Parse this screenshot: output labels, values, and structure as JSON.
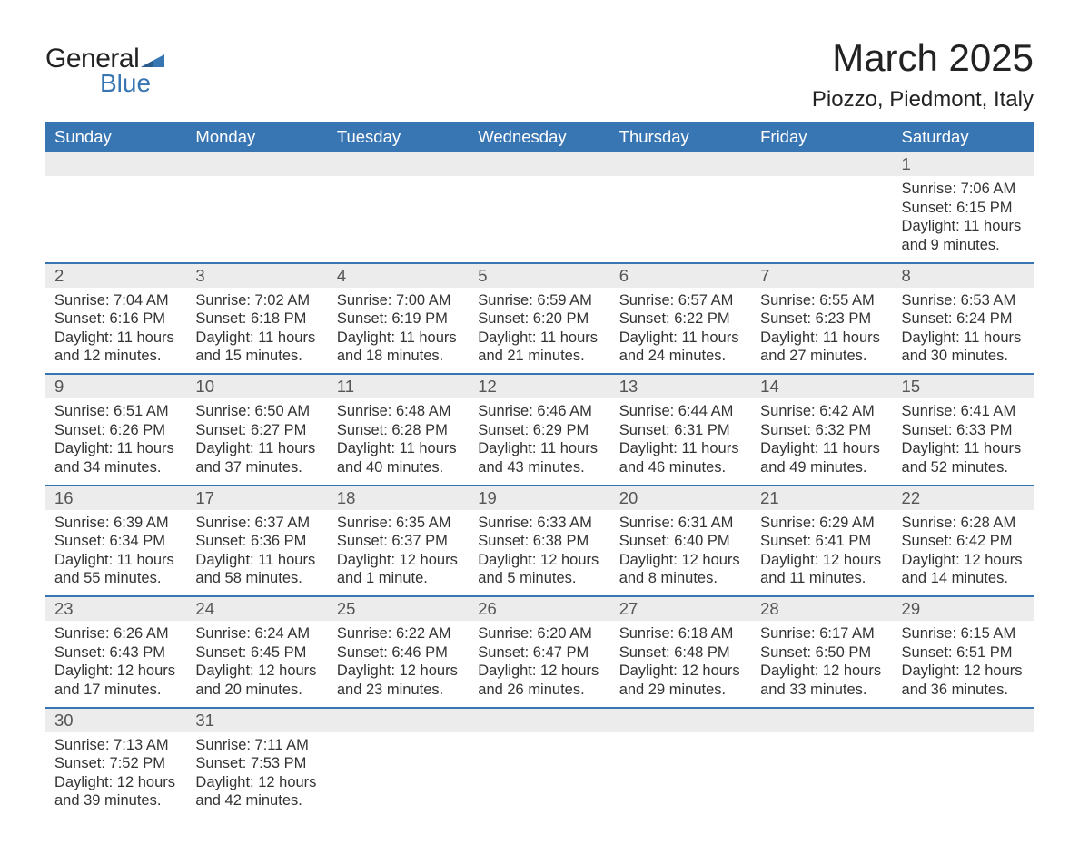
{
  "logo": {
    "text_general": "General",
    "text_blue": "Blue",
    "accent_color": "#3875b3"
  },
  "title": "March 2025",
  "location": "Piozzo, Piedmont, Italy",
  "colors": {
    "header_bg": "#3875b3",
    "header_text": "#ffffff",
    "daynum_bg": "#ececec",
    "row_border": "#3875b3",
    "body_text": "#333333",
    "daynum_text": "#555555",
    "page_bg": "#ffffff"
  },
  "fonts": {
    "title_size_pt": 32,
    "location_size_pt": 18,
    "header_size_pt": 14,
    "daynum_size_pt": 14,
    "cell_size_pt": 12.5
  },
  "layout": {
    "columns": 7,
    "rows": 6
  },
  "day_headers": [
    "Sunday",
    "Monday",
    "Tuesday",
    "Wednesday",
    "Thursday",
    "Friday",
    "Saturday"
  ],
  "weeks": [
    [
      {
        "day": "",
        "sunrise": "",
        "sunset": "",
        "daylight": ""
      },
      {
        "day": "",
        "sunrise": "",
        "sunset": "",
        "daylight": ""
      },
      {
        "day": "",
        "sunrise": "",
        "sunset": "",
        "daylight": ""
      },
      {
        "day": "",
        "sunrise": "",
        "sunset": "",
        "daylight": ""
      },
      {
        "day": "",
        "sunrise": "",
        "sunset": "",
        "daylight": ""
      },
      {
        "day": "",
        "sunrise": "",
        "sunset": "",
        "daylight": ""
      },
      {
        "day": "1",
        "sunrise": "Sunrise: 7:06 AM",
        "sunset": "Sunset: 6:15 PM",
        "daylight": "Daylight: 11 hours and 9 minutes."
      }
    ],
    [
      {
        "day": "2",
        "sunrise": "Sunrise: 7:04 AM",
        "sunset": "Sunset: 6:16 PM",
        "daylight": "Daylight: 11 hours and 12 minutes."
      },
      {
        "day": "3",
        "sunrise": "Sunrise: 7:02 AM",
        "sunset": "Sunset: 6:18 PM",
        "daylight": "Daylight: 11 hours and 15 minutes."
      },
      {
        "day": "4",
        "sunrise": "Sunrise: 7:00 AM",
        "sunset": "Sunset: 6:19 PM",
        "daylight": "Daylight: 11 hours and 18 minutes."
      },
      {
        "day": "5",
        "sunrise": "Sunrise: 6:59 AM",
        "sunset": "Sunset: 6:20 PM",
        "daylight": "Daylight: 11 hours and 21 minutes."
      },
      {
        "day": "6",
        "sunrise": "Sunrise: 6:57 AM",
        "sunset": "Sunset: 6:22 PM",
        "daylight": "Daylight: 11 hours and 24 minutes."
      },
      {
        "day": "7",
        "sunrise": "Sunrise: 6:55 AM",
        "sunset": "Sunset: 6:23 PM",
        "daylight": "Daylight: 11 hours and 27 minutes."
      },
      {
        "day": "8",
        "sunrise": "Sunrise: 6:53 AM",
        "sunset": "Sunset: 6:24 PM",
        "daylight": "Daylight: 11 hours and 30 minutes."
      }
    ],
    [
      {
        "day": "9",
        "sunrise": "Sunrise: 6:51 AM",
        "sunset": "Sunset: 6:26 PM",
        "daylight": "Daylight: 11 hours and 34 minutes."
      },
      {
        "day": "10",
        "sunrise": "Sunrise: 6:50 AM",
        "sunset": "Sunset: 6:27 PM",
        "daylight": "Daylight: 11 hours and 37 minutes."
      },
      {
        "day": "11",
        "sunrise": "Sunrise: 6:48 AM",
        "sunset": "Sunset: 6:28 PM",
        "daylight": "Daylight: 11 hours and 40 minutes."
      },
      {
        "day": "12",
        "sunrise": "Sunrise: 6:46 AM",
        "sunset": "Sunset: 6:29 PM",
        "daylight": "Daylight: 11 hours and 43 minutes."
      },
      {
        "day": "13",
        "sunrise": "Sunrise: 6:44 AM",
        "sunset": "Sunset: 6:31 PM",
        "daylight": "Daylight: 11 hours and 46 minutes."
      },
      {
        "day": "14",
        "sunrise": "Sunrise: 6:42 AM",
        "sunset": "Sunset: 6:32 PM",
        "daylight": "Daylight: 11 hours and 49 minutes."
      },
      {
        "day": "15",
        "sunrise": "Sunrise: 6:41 AM",
        "sunset": "Sunset: 6:33 PM",
        "daylight": "Daylight: 11 hours and 52 minutes."
      }
    ],
    [
      {
        "day": "16",
        "sunrise": "Sunrise: 6:39 AM",
        "sunset": "Sunset: 6:34 PM",
        "daylight": "Daylight: 11 hours and 55 minutes."
      },
      {
        "day": "17",
        "sunrise": "Sunrise: 6:37 AM",
        "sunset": "Sunset: 6:36 PM",
        "daylight": "Daylight: 11 hours and 58 minutes."
      },
      {
        "day": "18",
        "sunrise": "Sunrise: 6:35 AM",
        "sunset": "Sunset: 6:37 PM",
        "daylight": "Daylight: 12 hours and 1 minute."
      },
      {
        "day": "19",
        "sunrise": "Sunrise: 6:33 AM",
        "sunset": "Sunset: 6:38 PM",
        "daylight": "Daylight: 12 hours and 5 minutes."
      },
      {
        "day": "20",
        "sunrise": "Sunrise: 6:31 AM",
        "sunset": "Sunset: 6:40 PM",
        "daylight": "Daylight: 12 hours and 8 minutes."
      },
      {
        "day": "21",
        "sunrise": "Sunrise: 6:29 AM",
        "sunset": "Sunset: 6:41 PM",
        "daylight": "Daylight: 12 hours and 11 minutes."
      },
      {
        "day": "22",
        "sunrise": "Sunrise: 6:28 AM",
        "sunset": "Sunset: 6:42 PM",
        "daylight": "Daylight: 12 hours and 14 minutes."
      }
    ],
    [
      {
        "day": "23",
        "sunrise": "Sunrise: 6:26 AM",
        "sunset": "Sunset: 6:43 PM",
        "daylight": "Daylight: 12 hours and 17 minutes."
      },
      {
        "day": "24",
        "sunrise": "Sunrise: 6:24 AM",
        "sunset": "Sunset: 6:45 PM",
        "daylight": "Daylight: 12 hours and 20 minutes."
      },
      {
        "day": "25",
        "sunrise": "Sunrise: 6:22 AM",
        "sunset": "Sunset: 6:46 PM",
        "daylight": "Daylight: 12 hours and 23 minutes."
      },
      {
        "day": "26",
        "sunrise": "Sunrise: 6:20 AM",
        "sunset": "Sunset: 6:47 PM",
        "daylight": "Daylight: 12 hours and 26 minutes."
      },
      {
        "day": "27",
        "sunrise": "Sunrise: 6:18 AM",
        "sunset": "Sunset: 6:48 PM",
        "daylight": "Daylight: 12 hours and 29 minutes."
      },
      {
        "day": "28",
        "sunrise": "Sunrise: 6:17 AM",
        "sunset": "Sunset: 6:50 PM",
        "daylight": "Daylight: 12 hours and 33 minutes."
      },
      {
        "day": "29",
        "sunrise": "Sunrise: 6:15 AM",
        "sunset": "Sunset: 6:51 PM",
        "daylight": "Daylight: 12 hours and 36 minutes."
      }
    ],
    [
      {
        "day": "30",
        "sunrise": "Sunrise: 7:13 AM",
        "sunset": "Sunset: 7:52 PM",
        "daylight": "Daylight: 12 hours and 39 minutes."
      },
      {
        "day": "31",
        "sunrise": "Sunrise: 7:11 AM",
        "sunset": "Sunset: 7:53 PM",
        "daylight": "Daylight: 12 hours and 42 minutes."
      },
      {
        "day": "",
        "sunrise": "",
        "sunset": "",
        "daylight": ""
      },
      {
        "day": "",
        "sunrise": "",
        "sunset": "",
        "daylight": ""
      },
      {
        "day": "",
        "sunrise": "",
        "sunset": "",
        "daylight": ""
      },
      {
        "day": "",
        "sunrise": "",
        "sunset": "",
        "daylight": ""
      },
      {
        "day": "",
        "sunrise": "",
        "sunset": "",
        "daylight": ""
      }
    ]
  ]
}
